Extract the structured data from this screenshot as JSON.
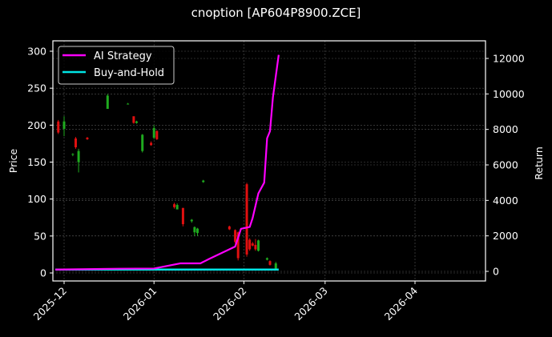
{
  "chart_data": {
    "type": "candlestick+line",
    "title": "cnoption [AP604P8900.ZCE]",
    "xlabel": "",
    "ylabel_left": "Price",
    "ylabel_right": "Return",
    "x_ticks": [
      "2025-12",
      "2026-01",
      "2026-02",
      "2026-03",
      "2026-04"
    ],
    "y_left_ticks": [
      0,
      50,
      100,
      150,
      200,
      250,
      300
    ],
    "y_right_ticks": [
      0,
      2000,
      4000,
      6000,
      8000,
      10000,
      12000
    ],
    "ylim_left": [
      -10,
      313
    ],
    "ylim_right": [
      -600,
      13000
    ],
    "grid": true,
    "legend_position": "upper left",
    "legend": [
      "AI Strategy",
      "Buy-and-Hold"
    ],
    "colors": {
      "background": "#000000",
      "ai_strategy": "#ff00ff",
      "buy_and_hold": "#00e5e5",
      "candle_up": "#1faa1f",
      "candle_down": "#e01010",
      "axes": "#ffffff",
      "grid": "#555555"
    },
    "candles": [
      {
        "date": "2025-11-29",
        "open": 205,
        "high": 207,
        "low": 188,
        "close": 190
      },
      {
        "date": "2025-12-01",
        "open": 195,
        "high": 212,
        "low": 185,
        "close": 205
      },
      {
        "date": "2025-12-04",
        "open": 160,
        "high": 162,
        "low": 158,
        "close": 161
      },
      {
        "date": "2025-12-05",
        "open": 182,
        "high": 184,
        "low": 168,
        "close": 170
      },
      {
        "date": "2025-12-06",
        "open": 150,
        "high": 168,
        "low": 136,
        "close": 165
      },
      {
        "date": "2025-12-09",
        "open": 183,
        "high": 184,
        "low": 180,
        "close": 181
      },
      {
        "date": "2025-12-16",
        "open": 222,
        "high": 242,
        "low": 222,
        "close": 240
      },
      {
        "date": "2025-12-23",
        "open": 229,
        "high": 230,
        "low": 228,
        "close": 229
      },
      {
        "date": "2025-12-25",
        "open": 212,
        "high": 212,
        "low": 202,
        "close": 203
      },
      {
        "date": "2025-12-26",
        "open": 203,
        "high": 206,
        "low": 202,
        "close": 205
      },
      {
        "date": "2025-12-28",
        "open": 165,
        "high": 188,
        "low": 163,
        "close": 187
      },
      {
        "date": "2025-12-31",
        "open": 176,
        "high": 178,
        "low": 172,
        "close": 173
      },
      {
        "date": "2026-01-01",
        "open": 183,
        "high": 200,
        "low": 181,
        "close": 196
      },
      {
        "date": "2026-01-02",
        "open": 192,
        "high": 193,
        "low": 180,
        "close": 181
      },
      {
        "date": "2026-01-18",
        "open": 123,
        "high": 126,
        "low": 122,
        "close": 125
      },
      {
        "date": "2026-01-08",
        "open": 93,
        "high": 95,
        "low": 87,
        "close": 89
      },
      {
        "date": "2026-01-09",
        "open": 86,
        "high": 94,
        "low": 86,
        "close": 92
      },
      {
        "date": "2026-01-11",
        "open": 88,
        "high": 88,
        "low": 63,
        "close": 66
      },
      {
        "date": "2026-01-14",
        "open": 70,
        "high": 73,
        "low": 68,
        "close": 72
      },
      {
        "date": "2026-01-15",
        "open": 55,
        "high": 63,
        "low": 50,
        "close": 62
      },
      {
        "date": "2026-01-16",
        "open": 54,
        "high": 61,
        "low": 50,
        "close": 60
      },
      {
        "date": "2026-01-27",
        "open": 63,
        "high": 64,
        "low": 58,
        "close": 59
      },
      {
        "date": "2026-01-29",
        "open": 58,
        "high": 59,
        "low": 40,
        "close": 42
      },
      {
        "date": "2026-01-30",
        "open": 55,
        "high": 56,
        "low": 17,
        "close": 20
      },
      {
        "date": "2026-02-02",
        "open": 120,
        "high": 122,
        "low": 22,
        "close": 25
      },
      {
        "date": "2026-02-03",
        "open": 45,
        "high": 47,
        "low": 30,
        "close": 32
      },
      {
        "date": "2026-02-04",
        "open": 40,
        "high": 42,
        "low": 36,
        "close": 37
      },
      {
        "date": "2026-02-05",
        "open": 38,
        "high": 46,
        "low": 30,
        "close": 32
      },
      {
        "date": "2026-02-06",
        "open": 30,
        "high": 45,
        "low": 29,
        "close": 44
      },
      {
        "date": "2026-02-09",
        "open": 18,
        "high": 21,
        "low": 17,
        "close": 20
      },
      {
        "date": "2026-02-10",
        "open": 16,
        "high": 17,
        "low": 10,
        "close": 11
      },
      {
        "date": "2026-02-12",
        "open": 6,
        "high": 15,
        "low": 5,
        "close": 13
      }
    ],
    "series": [
      {
        "name": "AI Strategy",
        "axis": "right",
        "x": [
          "2025-11-28",
          "2025-12-20",
          "2026-01-01",
          "2026-01-10",
          "2026-01-17",
          "2026-01-20",
          "2026-01-29",
          "2026-01-31",
          "2026-02-03",
          "2026-02-04",
          "2026-02-06",
          "2026-02-08",
          "2026-02-09",
          "2026-02-10",
          "2026-02-11",
          "2026-02-12",
          "2026-02-13"
        ],
        "values": [
          100,
          150,
          160,
          450,
          450,
          700,
          1400,
          2400,
          2500,
          3000,
          4400,
          5000,
          7500,
          7900,
          9800,
          11000,
          12200
        ]
      },
      {
        "name": "Buy-and-Hold",
        "axis": "right",
        "x": [
          "2025-11-28",
          "2026-02-13"
        ],
        "values": [
          100,
          100
        ]
      }
    ]
  }
}
